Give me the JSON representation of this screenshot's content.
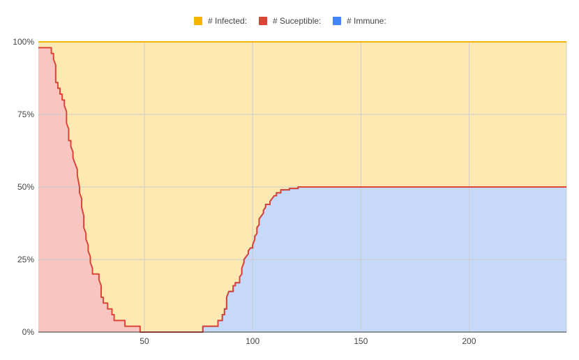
{
  "chart_data": {
    "type": "area",
    "stacked": "percent",
    "title": "",
    "xlabel": "",
    "ylabel": "",
    "xlim": [
      1,
      245
    ],
    "ylim": [
      0,
      100
    ],
    "x_ticks": [
      50,
      100,
      150,
      200
    ],
    "y_ticks": [
      "0%",
      "25%",
      "50%",
      "75%",
      "100%"
    ],
    "grid": true,
    "legend_position": "top",
    "legend": [
      {
        "label": "# Infected:",
        "color": "#f4b400"
      },
      {
        "label": "# Suceptible:",
        "color": "#db4437"
      },
      {
        "label": "# Immune:",
        "color": "#4285f4"
      }
    ],
    "series": [
      {
        "name": "# Immune:",
        "color": "#4285f4",
        "fill": "#c6d9f8",
        "points": [
          [
            77,
            0
          ],
          [
            77,
            2
          ],
          [
            84,
            2
          ],
          [
            84,
            4
          ],
          [
            86,
            4
          ],
          [
            86,
            6
          ],
          [
            87,
            6
          ],
          [
            87,
            8
          ],
          [
            88,
            8
          ],
          [
            88,
            10
          ],
          [
            88,
            12
          ],
          [
            89,
            14
          ],
          [
            91,
            14
          ],
          [
            91,
            16
          ],
          [
            92,
            16
          ],
          [
            92,
            17
          ],
          [
            94,
            17
          ],
          [
            94,
            19
          ],
          [
            95,
            20
          ],
          [
            95,
            22
          ],
          [
            96,
            24
          ],
          [
            96,
            25
          ],
          [
            97,
            26
          ],
          [
            98,
            27
          ],
          [
            98,
            28
          ],
          [
            99,
            29
          ],
          [
            100,
            29
          ],
          [
            100,
            30
          ],
          [
            101,
            32
          ],
          [
            101,
            33
          ],
          [
            102,
            34
          ],
          [
            102,
            36
          ],
          [
            103,
            37
          ],
          [
            103,
            39
          ],
          [
            104,
            40
          ],
          [
            105,
            41
          ],
          [
            105,
            42
          ],
          [
            106,
            43
          ],
          [
            106,
            44
          ],
          [
            108,
            44
          ],
          [
            108,
            45
          ],
          [
            109,
            46
          ],
          [
            110,
            47
          ],
          [
            111,
            47
          ],
          [
            111,
            48
          ],
          [
            113,
            48
          ],
          [
            113,
            49
          ],
          [
            117,
            49
          ],
          [
            117,
            49.5
          ],
          [
            121,
            49.5
          ],
          [
            121,
            50
          ],
          [
            245,
            50
          ]
        ]
      },
      {
        "name": "# Suceptible:",
        "color": "#db4437",
        "fill": "#f8c5c1",
        "points": [
          [
            1,
            98
          ],
          [
            7,
            98
          ],
          [
            7,
            96
          ],
          [
            8,
            96
          ],
          [
            8,
            94
          ],
          [
            9,
            92
          ],
          [
            9,
            86
          ],
          [
            10,
            86
          ],
          [
            10,
            84
          ],
          [
            11,
            84
          ],
          [
            11,
            82
          ],
          [
            12,
            82
          ],
          [
            12,
            80
          ],
          [
            13,
            80
          ],
          [
            13,
            78
          ],
          [
            14,
            76
          ],
          [
            14,
            72
          ],
          [
            15,
            70
          ],
          [
            15,
            66
          ],
          [
            16,
            66
          ],
          [
            16,
            64
          ],
          [
            17,
            62
          ],
          [
            17,
            60
          ],
          [
            18,
            58
          ],
          [
            19,
            56
          ],
          [
            19,
            54
          ],
          [
            20,
            50
          ],
          [
            20,
            48
          ],
          [
            21,
            46
          ],
          [
            21,
            43
          ],
          [
            22,
            40
          ],
          [
            22,
            36
          ],
          [
            23,
            34
          ],
          [
            23,
            32
          ],
          [
            24,
            30
          ],
          [
            24,
            28
          ],
          [
            25,
            26
          ],
          [
            25,
            24
          ],
          [
            26,
            22
          ],
          [
            26,
            20
          ],
          [
            29,
            20
          ],
          [
            29,
            18
          ],
          [
            30,
            16
          ],
          [
            30,
            12
          ],
          [
            31,
            12
          ],
          [
            31,
            10
          ],
          [
            33,
            10
          ],
          [
            33,
            8
          ],
          [
            35,
            8
          ],
          [
            35,
            6
          ],
          [
            36,
            6
          ],
          [
            36,
            4
          ],
          [
            41,
            4
          ],
          [
            41,
            2
          ],
          [
            48,
            2
          ],
          [
            48,
            0
          ],
          [
            77,
            0
          ],
          [
            77,
            2
          ],
          [
            84,
            2
          ],
          [
            84,
            4
          ],
          [
            86,
            4
          ],
          [
            86,
            6
          ],
          [
            87,
            6
          ],
          [
            87,
            8
          ],
          [
            88,
            8
          ],
          [
            88,
            10
          ],
          [
            88,
            12
          ],
          [
            89,
            14
          ],
          [
            91,
            14
          ],
          [
            91,
            16
          ],
          [
            92,
            16
          ],
          [
            92,
            17
          ],
          [
            94,
            17
          ],
          [
            94,
            19
          ],
          [
            95,
            20
          ],
          [
            95,
            22
          ],
          [
            96,
            24
          ],
          [
            96,
            25
          ],
          [
            97,
            26
          ],
          [
            98,
            27
          ],
          [
            98,
            28
          ],
          [
            99,
            29
          ],
          [
            100,
            29
          ],
          [
            100,
            30
          ],
          [
            101,
            32
          ],
          [
            101,
            33
          ],
          [
            102,
            34
          ],
          [
            102,
            36
          ],
          [
            103,
            37
          ],
          [
            103,
            39
          ],
          [
            104,
            40
          ],
          [
            105,
            41
          ],
          [
            105,
            42
          ],
          [
            106,
            43
          ],
          [
            106,
            44
          ],
          [
            108,
            44
          ],
          [
            108,
            45
          ],
          [
            109,
            46
          ],
          [
            110,
            47
          ],
          [
            111,
            47
          ],
          [
            111,
            48
          ],
          [
            113,
            48
          ],
          [
            113,
            49
          ],
          [
            117,
            49
          ],
          [
            117,
            49.5
          ],
          [
            121,
            49.5
          ],
          [
            121,
            50
          ],
          [
            245,
            50
          ]
        ]
      },
      {
        "name": "# Infected:",
        "color": "#f4b400",
        "fill": "#fde9b1",
        "points": [
          [
            1,
            100
          ],
          [
            245,
            100
          ]
        ]
      }
    ]
  }
}
